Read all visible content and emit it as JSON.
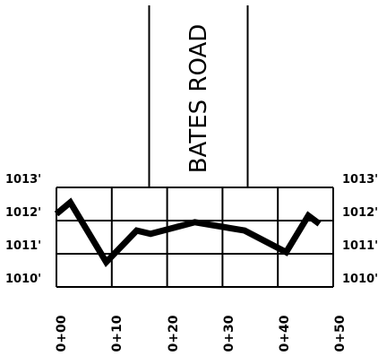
{
  "road": {
    "name": "BATES ROAD"
  },
  "elevation_labels": [
    "1013'",
    "1012'",
    "1011'",
    "1010'"
  ],
  "elevation_values": [
    1013,
    1012,
    1011,
    1010
  ],
  "station_labels": [
    "0+00",
    "0+10",
    "0+20",
    "0+30",
    "0+40",
    "0+50"
  ],
  "station_values": [
    0,
    10,
    20,
    30,
    40,
    50
  ],
  "chart_data": {
    "type": "line",
    "title": "",
    "xlabel": "",
    "ylabel": "",
    "xlim": [
      0,
      50
    ],
    "ylim": [
      1010,
      1013
    ],
    "grid": true,
    "series": [
      {
        "x": [
          0,
          2.5,
          9,
          14.5,
          17,
          25,
          34,
          41.5,
          45.5,
          47.5
        ],
        "y": [
          1012.2,
          1012.55,
          1010.75,
          1011.7,
          1011.6,
          1011.95,
          1011.7,
          1011.05,
          1012.15,
          1011.9
        ]
      }
    ]
  }
}
